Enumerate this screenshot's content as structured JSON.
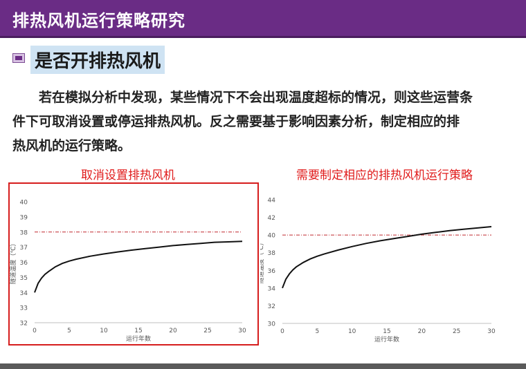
{
  "header": {
    "title": "排热风机运行策略研究"
  },
  "section": {
    "title": "是否开排热风机"
  },
  "paragraph": {
    "line1": "若在模拟分析中发现，某些情况下不会出现温度超标的情况，则这些运营条",
    "line2": "件下可取消设置或停运排热风机。反之需要基于影响因素分析，制定相应的排",
    "line3": "热风机的运行策略。"
  },
  "colors": {
    "header_bg": "#6a2c85",
    "caption": "#e01b1b",
    "frame": "#d61c1c",
    "threshold_line": "#c0272d",
    "curve": "#111111"
  },
  "chart_data": [
    {
      "type": "line",
      "title": "取消设置排热风机",
      "xlabel": "运行年数",
      "ylabel": "隧道温度（℃）",
      "xlim": [
        0,
        30
      ],
      "ylim": [
        32,
        40
      ],
      "xticks": [
        0,
        5,
        10,
        15,
        20,
        25,
        30
      ],
      "yticks": [
        32,
        33,
        34,
        35,
        36,
        37,
        38,
        39,
        40
      ],
      "threshold": 38,
      "x": [
        0,
        0.5,
        1,
        1.5,
        2,
        3,
        4,
        5,
        6,
        8,
        10,
        12,
        14,
        16,
        18,
        20,
        22,
        24,
        26,
        28,
        30
      ],
      "y": [
        34.0,
        34.6,
        34.95,
        35.2,
        35.38,
        35.7,
        35.92,
        36.08,
        36.2,
        36.4,
        36.55,
        36.68,
        36.8,
        36.9,
        37.0,
        37.1,
        37.18,
        37.25,
        37.32,
        37.35,
        37.38
      ]
    },
    {
      "type": "line",
      "title": "需要制定相应的排热风机运行策略",
      "xlabel": "运行年数",
      "ylabel": "隧道温度（℃）",
      "xlim": [
        0,
        30
      ],
      "ylim": [
        30,
        44
      ],
      "xticks": [
        0,
        5,
        10,
        15,
        20,
        25,
        30
      ],
      "yticks": [
        30,
        32,
        34,
        36,
        38,
        40,
        42,
        44
      ],
      "threshold": 40,
      "x": [
        0,
        0.5,
        1,
        1.5,
        2,
        3,
        4,
        5,
        6,
        8,
        10,
        12,
        14,
        16,
        18,
        20,
        22,
        24,
        26,
        28,
        30
      ],
      "y": [
        34.0,
        35.0,
        35.6,
        36.05,
        36.4,
        36.9,
        37.3,
        37.6,
        37.85,
        38.3,
        38.7,
        39.05,
        39.35,
        39.6,
        39.85,
        40.1,
        40.3,
        40.5,
        40.65,
        40.8,
        40.95
      ]
    }
  ]
}
